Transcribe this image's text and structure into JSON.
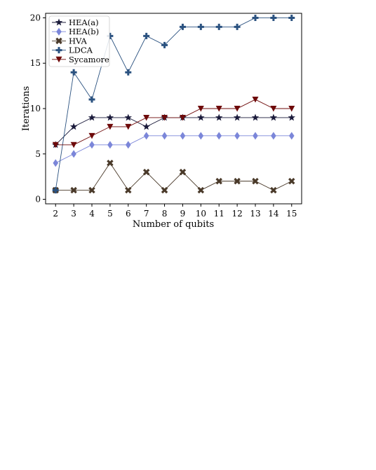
{
  "chart_data": {
    "type": "line",
    "title": "",
    "xlabel": "Number of qubits",
    "ylabel": "Iterations",
    "x": [
      2,
      3,
      4,
      5,
      6,
      7,
      8,
      9,
      10,
      11,
      12,
      13,
      14,
      15
    ],
    "xlim": [
      1.45,
      15.55
    ],
    "ylim": [
      -0.5,
      20.5
    ],
    "yticks": [
      0,
      5,
      10,
      15,
      20
    ],
    "grid": false,
    "legend_position": "top-left",
    "series": [
      {
        "name": "HEA(a)",
        "color": "#1a1a3a",
        "marker": "star",
        "values": [
          6,
          8,
          9,
          9,
          9,
          8,
          9,
          9,
          9,
          9,
          9,
          9,
          9,
          9
        ]
      },
      {
        "name": "HEA(b)",
        "color": "#7b86d9",
        "marker": "diamond",
        "values": [
          4,
          5,
          6,
          6,
          6,
          7,
          7,
          7,
          7,
          7,
          7,
          7,
          7,
          7
        ]
      },
      {
        "name": "HVA",
        "color": "#4a3a2a",
        "marker": "x",
        "values": [
          1,
          1,
          1,
          4,
          1,
          3,
          1,
          3,
          1,
          2,
          2,
          2,
          1,
          2
        ]
      },
      {
        "name": "LDCA",
        "color": "#2b5280",
        "marker": "plus",
        "values": [
          1,
          14,
          11,
          18,
          14,
          18,
          17,
          19,
          19,
          19,
          19,
          20,
          20,
          20
        ]
      },
      {
        "name": "Sycamore",
        "color": "#6e0a0a",
        "marker": "triangle-down",
        "values": [
          6,
          6,
          7,
          8,
          8,
          9,
          9,
          9,
          10,
          10,
          10,
          11,
          10,
          10
        ]
      }
    ]
  }
}
